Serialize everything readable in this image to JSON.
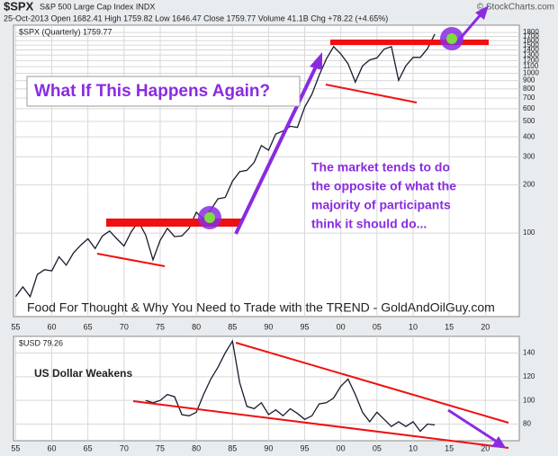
{
  "header": {
    "title": "$SPX",
    "subtitle": "S&P 500 Large Cap Index INDX",
    "quote_line": "25-Oct-2013  Open 1682.41  High 1759.82  Low 1646.47  Close 1759.77  Volume 41.1B  Chg +78.22 (+4.65%)",
    "credit": "© StockCharts.com"
  },
  "annotations": {
    "question": "What If This Happens Again?",
    "market_note": [
      "The market tends to do",
      "the opposite of what the",
      "majority of participants",
      "think it should do..."
    ],
    "footer_note": "Food For Thought & Why You Need to Trade with the TREND - GoldAndOilGuy.com",
    "usd_note": "US Dollar Weakens"
  },
  "chart_data": [
    {
      "type": "line",
      "log_y": true,
      "grid": true,
      "x": [
        1955,
        1956,
        1957,
        1958,
        1959,
        1960,
        1961,
        1962,
        1963,
        1964,
        1965,
        1966,
        1967,
        1968,
        1969,
        1970,
        1971,
        1972,
        1973,
        1974,
        1975,
        1976,
        1977,
        1978,
        1979,
        1980,
        1981,
        1982,
        1983,
        1984,
        1985,
        1986,
        1987,
        1988,
        1989,
        1990,
        1991,
        1992,
        1993,
        1994,
        1995,
        1996,
        1997,
        1998,
        1999,
        2000,
        2001,
        2002,
        2003,
        2004,
        2005,
        2006,
        2007,
        2008,
        2009,
        2010,
        2011,
        2012,
        2013
      ],
      "series": [
        {
          "name": "$SPX (Quarterly) 1759.77",
          "color": "#1a1a2e",
          "values": [
            40,
            46,
            40,
            55,
            59,
            58,
            71,
            63,
            75,
            84,
            92,
            80,
            96,
            103,
            92,
            83,
            102,
            118,
            97,
            68,
            90,
            107,
            95,
            96,
            107,
            135,
            122,
            140,
            164,
            167,
            211,
            242,
            247,
            277,
            353,
            330,
            417,
            435,
            466,
            459,
            615,
            740,
            970,
            1229,
            1469,
            1320,
            1148,
            880,
            1112,
            1212,
            1248,
            1418,
            1468,
            903,
            1115,
            1257,
            1257,
            1426,
            1760
          ]
        }
      ],
      "xlim": [
        1954.7,
        2024.7
      ],
      "xticks": [
        {
          "value": 1955,
          "label": "55"
        },
        {
          "value": 1960,
          "label": "60"
        },
        {
          "value": 1965,
          "label": "65"
        },
        {
          "value": 1970,
          "label": "70"
        },
        {
          "value": 1975,
          "label": "75"
        },
        {
          "value": 1980,
          "label": "80"
        },
        {
          "value": 1985,
          "label": "85"
        },
        {
          "value": 1990,
          "label": "90"
        },
        {
          "value": 1995,
          "label": "95"
        },
        {
          "value": 2000,
          "label": "00"
        },
        {
          "value": 2005,
          "label": "05"
        },
        {
          "value": 2010,
          "label": "10"
        },
        {
          "value": 2015,
          "label": "15"
        },
        {
          "value": 2020,
          "label": "20"
        }
      ],
      "ylim": [
        30,
        2000
      ],
      "yticks": [
        100,
        200,
        300,
        400,
        500,
        600,
        700,
        800,
        900,
        1000,
        1100,
        1200,
        1300,
        1400,
        1500,
        1600,
        1700,
        1800
      ]
    },
    {
      "type": "line",
      "log_y": false,
      "grid": true,
      "x": [
        1973,
        1974,
        1975,
        1976,
        1977,
        1978,
        1979,
        1980,
        1981,
        1982,
        1983,
        1984,
        1985,
        1986,
        1987,
        1988,
        1989,
        1990,
        1991,
        1992,
        1993,
        1994,
        1995,
        1996,
        1997,
        1998,
        1999,
        2000,
        2001,
        2002,
        2003,
        2004,
        2005,
        2006,
        2007,
        2008,
        2009,
        2010,
        2011,
        2012,
        2013
      ],
      "series": [
        {
          "name": "$USD 79.26",
          "color": "#1a1a2e",
          "values": [
            100,
            98,
            100,
            105,
            103,
            88,
            87,
            90,
            105,
            118,
            128,
            140,
            150,
            115,
            95,
            93,
            98,
            88,
            92,
            87,
            93,
            89,
            84,
            87,
            97,
            98,
            102,
            112,
            118,
            105,
            90,
            82,
            90,
            84,
            78,
            82,
            78,
            82,
            74,
            80,
            79.26
          ]
        }
      ],
      "xlim": [
        1954.7,
        2024.7
      ],
      "xticks": [
        {
          "value": 1955,
          "label": "55"
        },
        {
          "value": 1960,
          "label": "60"
        },
        {
          "value": 1965,
          "label": "65"
        },
        {
          "value": 1970,
          "label": "70"
        },
        {
          "value": 1975,
          "label": "75"
        },
        {
          "value": 1980,
          "label": "80"
        },
        {
          "value": 1985,
          "label": "85"
        },
        {
          "value": 1990,
          "label": "90"
        },
        {
          "value": 1995,
          "label": "95"
        },
        {
          "value": 2000,
          "label": "00"
        },
        {
          "value": 2005,
          "label": "05"
        },
        {
          "value": 2010,
          "label": "10"
        },
        {
          "value": 2015,
          "label": "15"
        },
        {
          "value": 2020,
          "label": "20"
        }
      ],
      "ylim": [
        66,
        154
      ],
      "yticks": [
        80,
        100,
        120,
        140
      ]
    }
  ]
}
